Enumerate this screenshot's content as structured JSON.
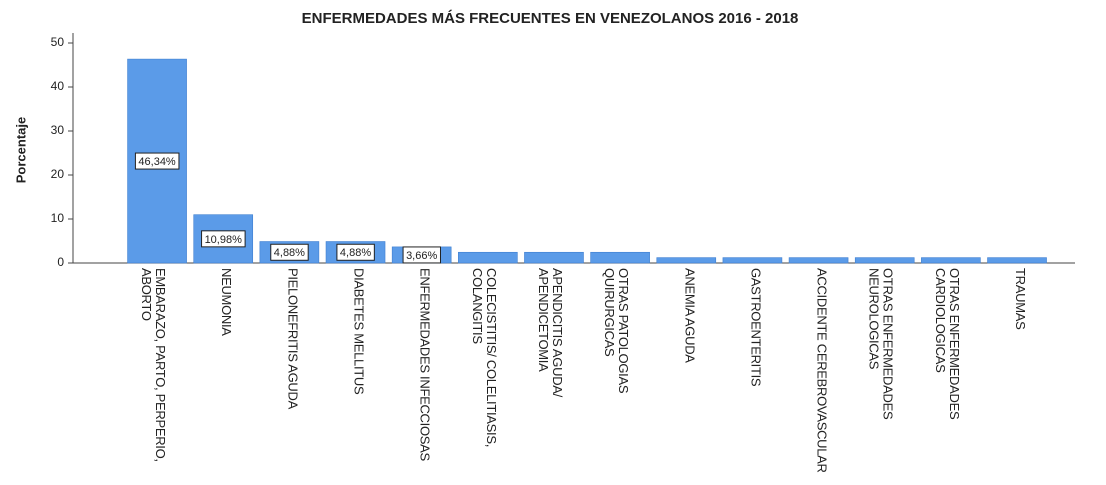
{
  "chart_data": {
    "type": "bar",
    "title": "ENFERMEDADES MÁS FRECUENTES EN VENEZOLANOS 2016 - 2018",
    "y_label": "Porcentaje",
    "categories": [
      "EMBARAZO, PARTO, PERPERIO, ABORTO",
      "NEUMONIA",
      "PIELONEFRITIS AGUDA",
      "DIABETES MELLITUS",
      "ENFERMEDADES INFECCIOSAS",
      "COLECISTITIS/ COLELITIASIS, COLANGITIS",
      "APENDICITIS AGUDA/ APENDICETOMIA",
      "OTRAS PATOLOGIAS QUIRURGICAS",
      "ANEMIA AGUDA",
      "GASTROENTERITIS",
      "ACCIDENTE CEREBROVASCULAR",
      "OTRAS ENFERMEDADES NEUROLOGICAS",
      "OTRAS ENFERMEDADES CARDIOLOGICAS",
      "TRAUMAS"
    ],
    "values": [
      46.34,
      10.98,
      4.88,
      4.88,
      3.66,
      2.44,
      2.44,
      2.44,
      1.22,
      1.22,
      1.22,
      1.22,
      1.22,
      1.22
    ],
    "value_labels": [
      "46,34%",
      "10,98%",
      "4,88%",
      "4,88%",
      "3,66%",
      null,
      null,
      null,
      null,
      null,
      null,
      null,
      null,
      null
    ],
    "color": "#5b9be8",
    "ylim": [
      0,
      50
    ],
    "yticks": [
      0,
      10,
      20,
      30,
      40,
      50
    ],
    "grid": false
  }
}
